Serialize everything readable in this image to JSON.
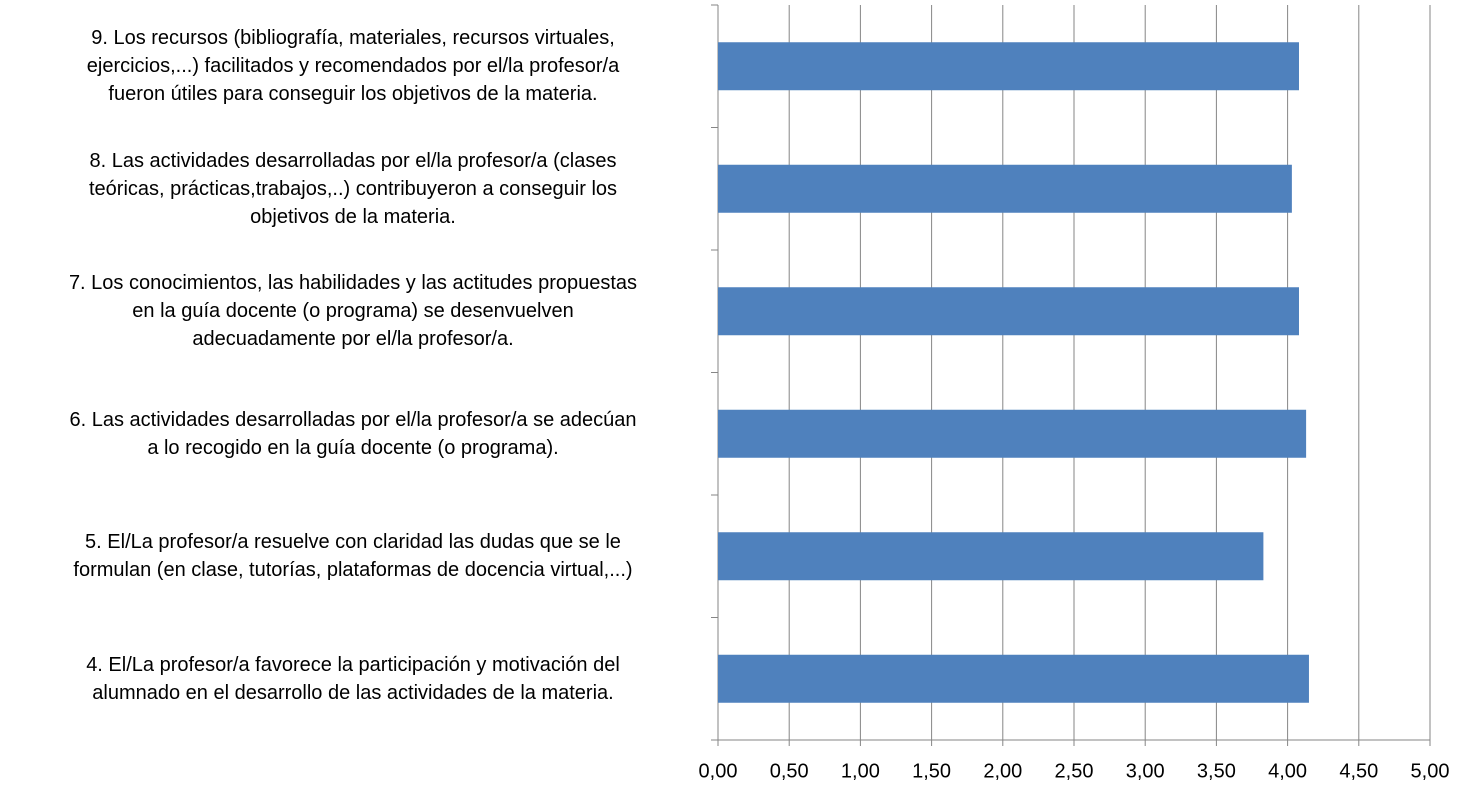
{
  "chart_data": {
    "type": "barh",
    "categories": [
      "9. Los recursos (bibliografía, materiales, recursos virtuales,\nejercicios,...) facilitados y recomendados por el/la profesor/a\nfueron útiles para conseguir los objetivos de la materia.",
      "8. Las actividades desarrolladas por el/la profesor/a (clases\nteóricas, prácticas,trabajos,..) contribuyeron a conseguir los\nobjetivos de la materia.",
      "7. Los conocimientos, las habilidades y las actitudes propuestas\nen la guía docente (o programa) se desenvuelven\nadecuadamente por el/la profesor/a.",
      "6. Las actividades desarrolladas por el/la profesor/a se adecúan\na lo recogido en la guía docente (o programa).",
      "5. El/La profesor/a resuelve con claridad las dudas que se le\nformulan (en clase, tutorías, plataformas de docencia virtual,...)",
      "4. El/La profesor/a favorece la participación y motivación del\nalumnado en el desarrollo de las actividades de la materia."
    ],
    "values": [
      4.08,
      4.03,
      4.08,
      4.13,
      3.83,
      4.15
    ],
    "color": "#4f81bd",
    "xlim": [
      0,
      5
    ],
    "xticks": [
      {
        "value": 0,
        "label": "0,00"
      },
      {
        "value": 0.5,
        "label": "0,50"
      },
      {
        "value": 1,
        "label": "1,00"
      },
      {
        "value": 1.5,
        "label": "1,50"
      },
      {
        "value": 2,
        "label": "2,00"
      },
      {
        "value": 2.5,
        "label": "2,50"
      },
      {
        "value": 3,
        "label": "3,00"
      },
      {
        "value": 3.5,
        "label": "3,50"
      },
      {
        "value": 4,
        "label": "4,00"
      },
      {
        "value": 4.5,
        "label": "4,50"
      },
      {
        "value": 5,
        "label": "5,00"
      }
    ],
    "grid": true
  }
}
